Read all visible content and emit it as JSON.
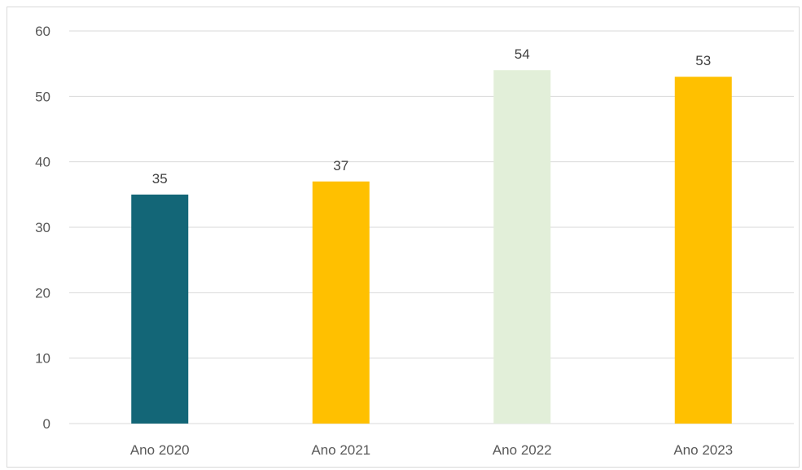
{
  "chart_data": {
    "type": "bar",
    "categories": [
      "Ano 2020",
      "Ano 2021",
      "Ano 2022",
      "Ano 2023"
    ],
    "values": [
      35,
      37,
      54,
      53
    ],
    "data_labels": [
      "35",
      "37",
      "54",
      "53"
    ],
    "bar_colors": [
      "#136677",
      "#ffc000",
      "#e2efd9",
      "#ffc000"
    ],
    "ylim": [
      0,
      60
    ],
    "yticks": [
      0,
      10,
      20,
      30,
      40,
      50,
      60
    ],
    "ytick_labels": [
      "0",
      "10",
      "20",
      "30",
      "40",
      "50",
      "60"
    ],
    "grid": true,
    "title": "",
    "xlabel": "",
    "ylabel": ""
  }
}
